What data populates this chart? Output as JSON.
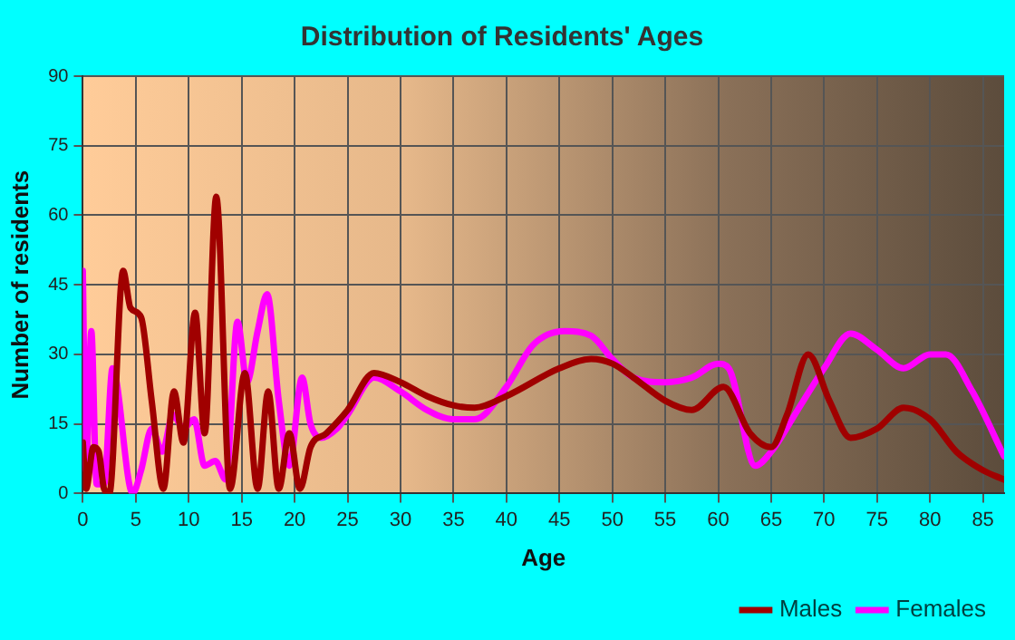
{
  "chart_data": {
    "type": "line",
    "title": "Distribution of Residents' Ages",
    "xlabel": "Age",
    "ylabel": "Number of residents",
    "xlim": [
      0,
      87
    ],
    "xticks": [
      0,
      5,
      10,
      15,
      20,
      25,
      30,
      35,
      40,
      45,
      50,
      55,
      60,
      65,
      70,
      75,
      80,
      85
    ],
    "ylim": [
      0,
      90
    ],
    "yticks": [
      0,
      15,
      30,
      45,
      60,
      75,
      90
    ],
    "grid": true,
    "legend": "bottom right",
    "marker": "none",
    "line_style": "solid",
    "series": [
      {
        "name": "Males",
        "color": "#a00000",
        "x": [
          0,
          0.3,
          1,
          1.5,
          2,
          2.5,
          3.8,
          4.5,
          5.5,
          6.5,
          7.6,
          8.6,
          9.5,
          10.6,
          11.5,
          12.6,
          13.9,
          15.3,
          16.5,
          17.5,
          18.5,
          19.5,
          20.5,
          21.5,
          23,
          25,
          27.5,
          30,
          32.5,
          35,
          37,
          40,
          45,
          48,
          50,
          52,
          55,
          57.5,
          60.5,
          63,
          65,
          66.5,
          68.5,
          70.5,
          72.5,
          75,
          77.5,
          80,
          82.5,
          85,
          87
        ],
        "values": [
          11,
          1,
          10,
          9,
          1,
          0,
          48,
          40,
          38,
          20,
          1,
          22,
          11,
          39,
          13,
          64,
          1,
          26,
          1,
          22,
          1,
          13,
          1,
          10,
          13,
          18,
          26,
          24,
          21,
          19,
          18.5,
          21,
          27,
          29,
          28,
          25,
          20,
          18,
          23,
          13,
          10,
          17,
          30,
          20,
          12,
          14,
          18.5,
          16,
          9,
          5,
          3
        ]
      },
      {
        "name": "Females",
        "color": "#ff00ff",
        "x": [
          0,
          0.3,
          0.8,
          1.3,
          2,
          2.8,
          4.7,
          5.5,
          6.5,
          7.5,
          8.5,
          9.5,
          10.5,
          11.5,
          12.5,
          13.5,
          14.6,
          15.5,
          16.5,
          17.4,
          18.5,
          19.5,
          20.7,
          21.5,
          22.5,
          24,
          25,
          27.5,
          30,
          32.5,
          35,
          37,
          40,
          42.5,
          45.5,
          48,
          50,
          52,
          55,
          57.5,
          60,
          61,
          63.5,
          65,
          67.5,
          70,
          72.5,
          75,
          77.5,
          80,
          81.5,
          84,
          87
        ],
        "values": [
          48,
          5,
          35,
          2,
          2,
          27,
          0,
          5,
          14,
          9,
          17,
          14,
          16,
          6,
          7,
          3,
          37,
          24,
          35,
          43,
          20,
          6,
          25,
          15,
          12,
          14,
          17,
          25,
          22,
          18,
          16,
          16,
          23,
          32,
          35,
          34,
          29,
          25,
          24,
          25,
          28,
          27,
          6,
          9,
          18,
          27,
          34.5,
          31,
          27,
          30,
          30,
          22,
          8
        ]
      }
    ]
  }
}
